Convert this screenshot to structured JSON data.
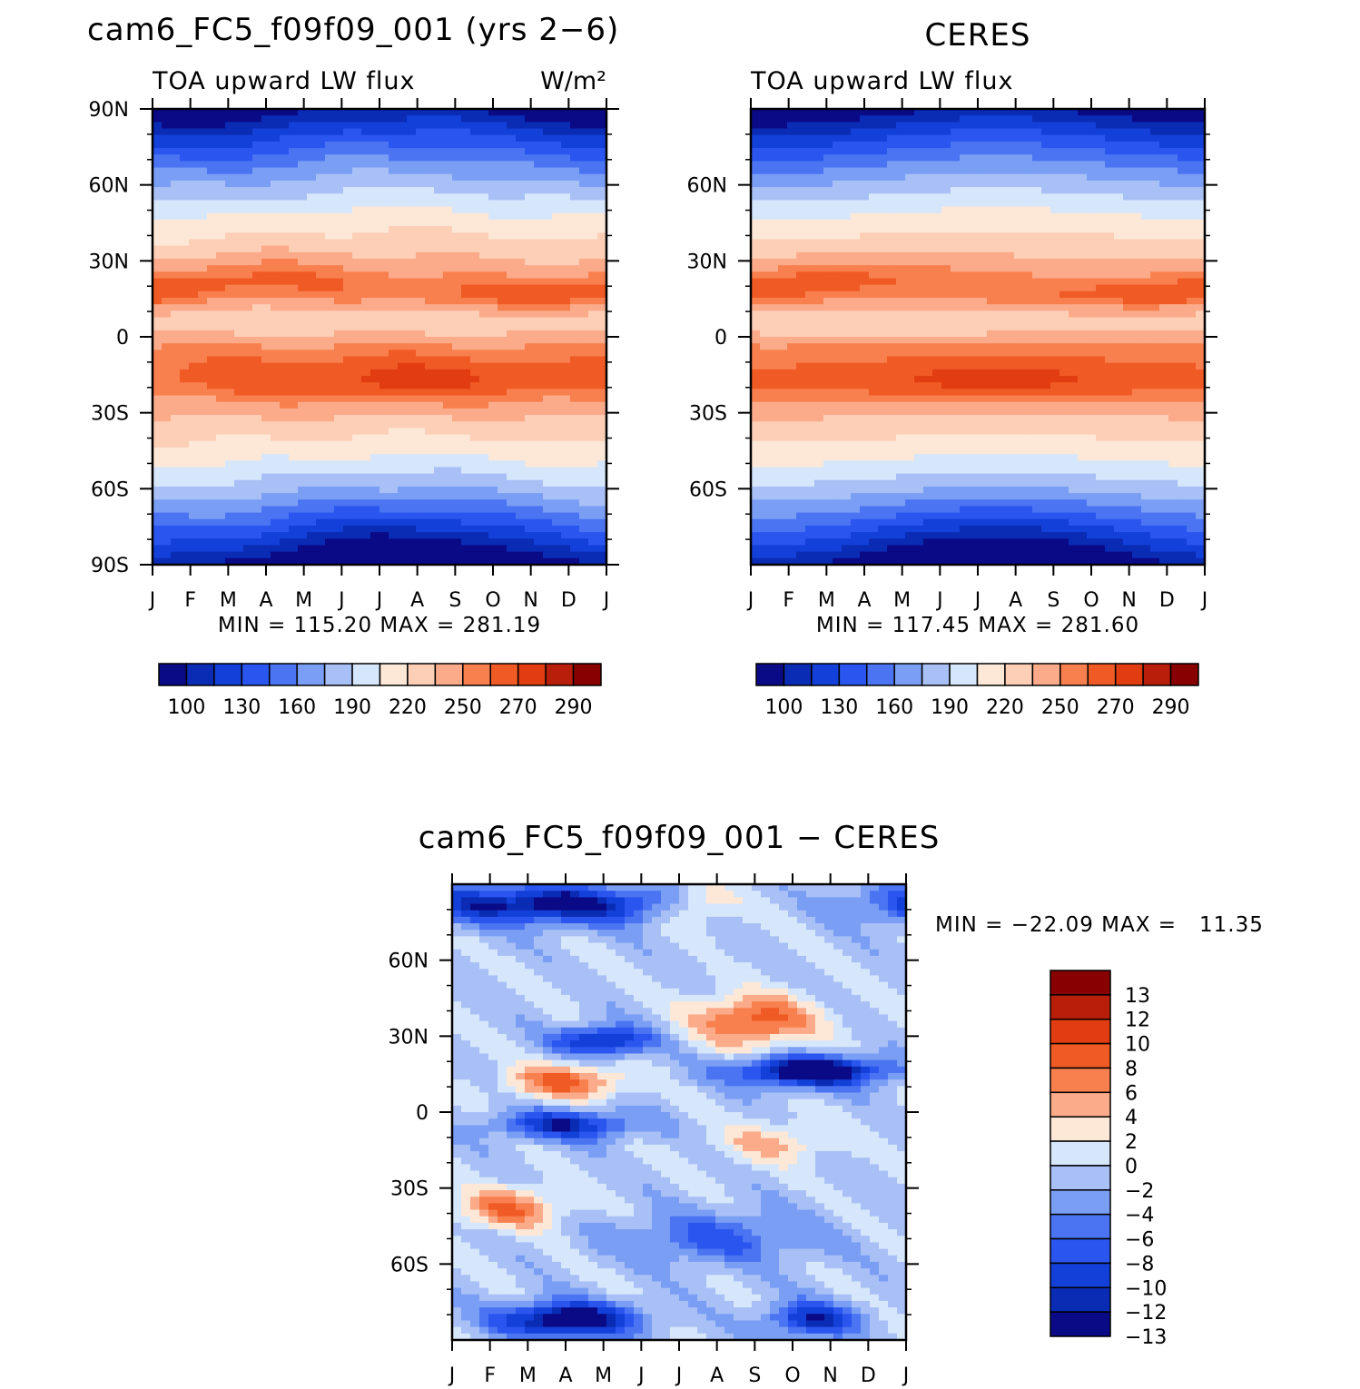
{
  "chart_data": [
    {
      "type": "heatmap",
      "title": "cam6_FC5_f09f09_001 (yrs 2−6)",
      "subtitle_left": "TOA upward LW flux",
      "units_label": "W/m²",
      "x_tick_labels": [
        "J",
        "F",
        "M",
        "A",
        "M",
        "J",
        "J",
        "A",
        "S",
        "O",
        "N",
        "D",
        "J"
      ],
      "y_tick_labels": [
        "90N",
        "60N",
        "30N",
        "0",
        "30S",
        "60S",
        "90S"
      ],
      "y_tick_values": [
        90,
        60,
        30,
        0,
        -30,
        -60,
        -90
      ],
      "ylim": [
        -90,
        90
      ],
      "minmax_text": "MIN = 115.20 MAX = 281.19",
      "min": 115.2,
      "max": 281.19,
      "colorbar_labels": [
        "100",
        "130",
        "160",
        "190",
        "220",
        "250",
        "270",
        "290"
      ]
    },
    {
      "type": "heatmap",
      "title": "CERES",
      "subtitle_left": "TOA upward LW flux",
      "x_tick_labels": [
        "J",
        "F",
        "M",
        "A",
        "M",
        "J",
        "J",
        "A",
        "S",
        "O",
        "N",
        "D",
        "J"
      ],
      "y_tick_labels": [
        "60N",
        "30N",
        "0",
        "30S",
        "60S"
      ],
      "y_tick_values": [
        60,
        30,
        0,
        -30,
        -60
      ],
      "ylim": [
        -90,
        90
      ],
      "minmax_text": "MIN = 117.45 MAX = 281.60",
      "min": 117.45,
      "max": 281.6,
      "colorbar_labels": [
        "100",
        "130",
        "160",
        "190",
        "220",
        "250",
        "270",
        "290"
      ]
    },
    {
      "type": "heatmap",
      "title": "cam6_FC5_f09f09_001 − CERES",
      "x_tick_labels": [
        "J",
        "F",
        "M",
        "A",
        "M",
        "J",
        "J",
        "A",
        "S",
        "O",
        "N",
        "D",
        "J"
      ],
      "y_tick_labels": [
        "60N",
        "30N",
        "0",
        "30S",
        "60S"
      ],
      "y_tick_values": [
        60,
        30,
        0,
        -30,
        -60
      ],
      "ylim": [
        -90,
        90
      ],
      "minmax_text": "MIN = −22.09 MAX =   11.35",
      "min": -22.09,
      "max": 11.35,
      "colorbar_labels": [
        "13",
        "12",
        "10",
        "8",
        "6",
        "4",
        "2",
        "0",
        "−2",
        "−4",
        "−6",
        "−8",
        "−10",
        "−12",
        "−13"
      ]
    }
  ],
  "palettes": {
    "flux": [
      "#0a0a86",
      "#0a2bb4",
      "#1340d8",
      "#2a55ee",
      "#4a74f2",
      "#7a9ef4",
      "#a8c0f6",
      "#d6e6fb",
      "#fde8d8",
      "#fccfb6",
      "#fbab8a",
      "#f8804f",
      "#f05a25",
      "#e23d10",
      "#b81e0a",
      "#880000"
    ],
    "diff": [
      "#880000",
      "#b81e0a",
      "#e23d10",
      "#f05a25",
      "#f8804f",
      "#fbab8a",
      "#fde8d8",
      "#d6e6fb",
      "#a8c0f6",
      "#7a9ef4",
      "#4a74f2",
      "#2a55ee",
      "#1340d8",
      "#0a2bb4",
      "#0a0a86"
    ]
  }
}
